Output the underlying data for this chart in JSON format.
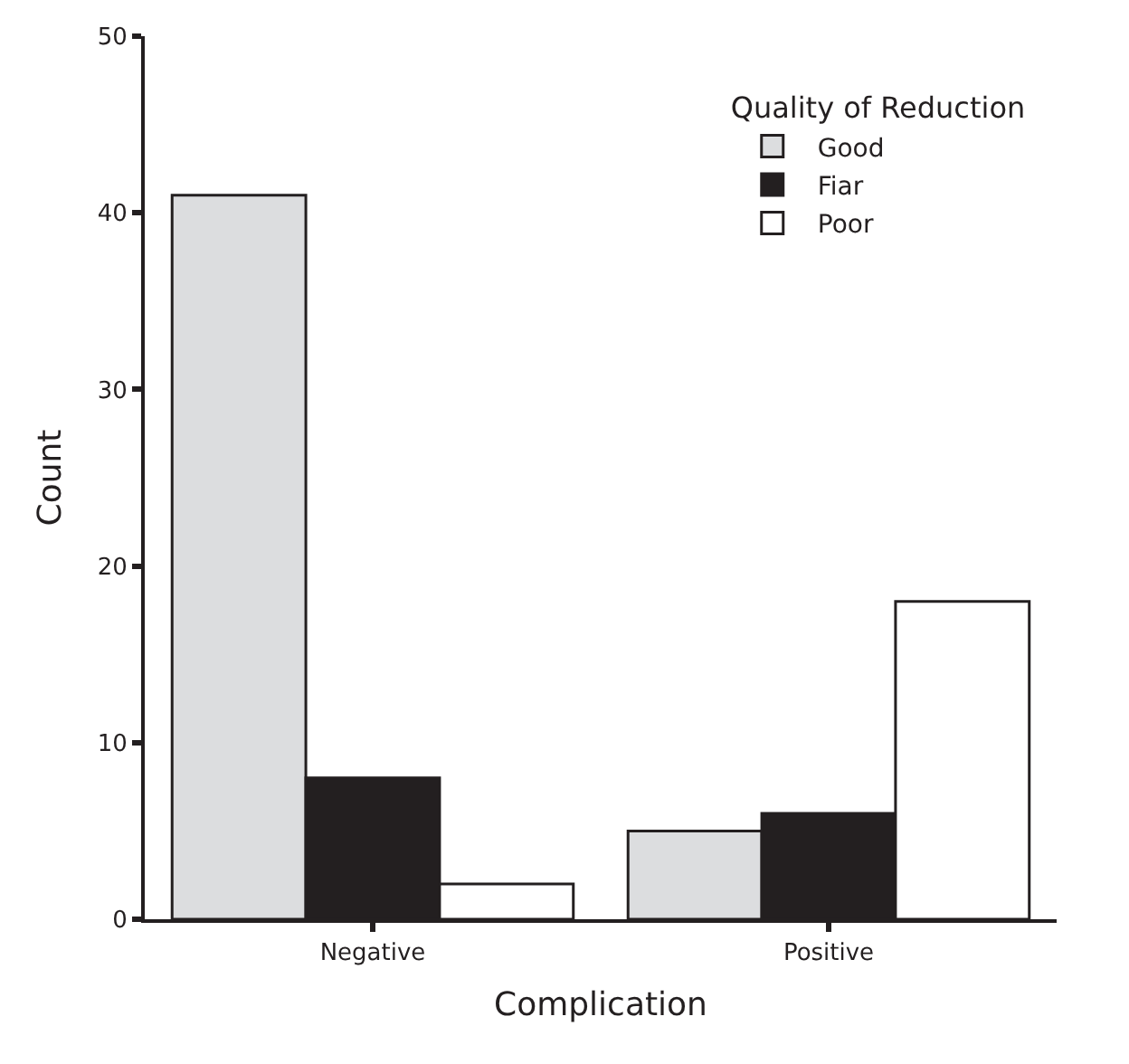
{
  "chart_data": {
    "type": "bar",
    "xlabel": "Complication",
    "ylabel": "Count",
    "legend_title": "Quality of Reduction",
    "categories": [
      "Negative",
      "Positive"
    ],
    "series": [
      {
        "name": "Good",
        "color": "#dcdddf",
        "values": [
          41,
          5
        ]
      },
      {
        "name": "Fiar",
        "color": "#231f20",
        "values": [
          8,
          6
        ]
      },
      {
        "name": "Poor",
        "color": "#ffffff",
        "values": [
          2,
          18
        ]
      }
    ],
    "ylim": [
      0,
      50
    ],
    "yticks": [
      0,
      10,
      20,
      30,
      40,
      50
    ],
    "legend": "top right"
  }
}
